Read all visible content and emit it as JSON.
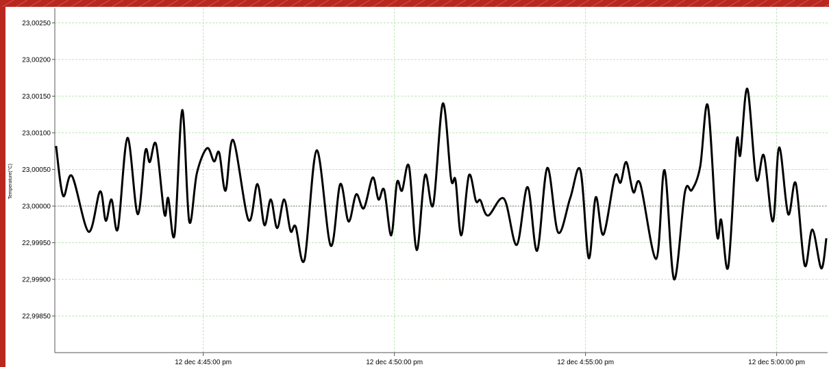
{
  "chart_data": {
    "type": "line",
    "y_label": "Temperature(°C)",
    "x": [
      "16:41:09",
      "16:41:20",
      "16:41:34",
      "16:42:00",
      "16:42:18",
      "16:42:27",
      "16:42:36",
      "16:42:46",
      "16:43:01",
      "16:43:17",
      "16:43:29",
      "16:43:36",
      "16:43:46",
      "16:43:59",
      "16:44:05",
      "16:44:15",
      "16:44:27",
      "16:44:38",
      "16:44:50",
      "16:45:06",
      "16:45:17",
      "16:45:25",
      "16:45:35",
      "16:45:47",
      "16:46:11",
      "16:46:25",
      "16:46:36",
      "16:46:46",
      "16:46:56",
      "16:47:07",
      "16:47:17",
      "16:47:25",
      "16:47:39",
      "16:47:58",
      "16:48:20",
      "16:48:35",
      "16:48:48",
      "16:49:00",
      "16:49:12",
      "16:49:26",
      "16:49:35",
      "16:49:44",
      "16:49:55",
      "16:50:04",
      "16:50:12",
      "16:50:23",
      "16:50:35",
      "16:50:48",
      "16:51:01",
      "16:51:16",
      "16:51:29",
      "16:51:36",
      "16:51:45",
      "16:51:57",
      "16:52:08",
      "16:52:15",
      "16:52:27",
      "16:52:52",
      "16:53:12",
      "16:53:29",
      "16:53:44",
      "16:54:00",
      "16:54:17",
      "16:54:36",
      "16:54:52",
      "16:55:05",
      "16:55:16",
      "16:55:28",
      "16:55:46",
      "16:55:55",
      "16:56:04",
      "16:56:15",
      "16:56:26",
      "16:56:51",
      "16:57:04",
      "16:57:19",
      "16:57:36",
      "16:57:47",
      "16:58:00",
      "16:58:12",
      "16:58:26",
      "16:58:33",
      "16:58:44",
      "16:58:57",
      "16:59:03",
      "16:59:14",
      "16:59:28",
      "16:59:40",
      "16:59:54",
      "17:00:04",
      "17:00:18",
      "17:00:30",
      "17:00:44",
      "17:00:56",
      "17:01:10",
      "17:01:18"
    ],
    "series": [
      {
        "color": "#000000",
        "values": [
          23.00082,
          23.00014,
          23.00041,
          22.99965,
          23.0002,
          22.9998,
          23.00009,
          22.99969,
          23.00093,
          22.99989,
          23.00075,
          23.0006,
          23.00084,
          22.99989,
          23.00011,
          22.99961,
          23.00131,
          22.99979,
          23.00045,
          23.00079,
          23.00061,
          23.00073,
          23.00021,
          23.0009,
          22.99981,
          23.0003,
          22.99974,
          23.00009,
          22.9997,
          23.00009,
          22.99966,
          22.99972,
          22.99927,
          23.00076,
          22.99946,
          23.0003,
          22.99979,
          23.00016,
          22.99997,
          23.00039,
          23.00009,
          23.00022,
          22.9996,
          23.00032,
          23.00021,
          23.00054,
          22.9994,
          23.00042,
          23.00002,
          23.0014,
          23.00037,
          23.00035,
          22.9996,
          23.00042,
          23.00007,
          23.00008,
          22.99987,
          23.0001,
          22.99947,
          23.00026,
          22.99939,
          23.00052,
          22.99964,
          23.00011,
          23.00049,
          22.99929,
          23.00012,
          22.99961,
          23.0004,
          23.00032,
          23.0006,
          23.00019,
          23.0003,
          22.99928,
          23.00049,
          22.999,
          23.00019,
          23.00022,
          23.00054,
          23.00137,
          22.99963,
          22.99981,
          22.99917,
          23.00087,
          23.0007,
          23.0016,
          23.00037,
          23.00069,
          22.99979,
          23.0008,
          22.99989,
          23.00031,
          22.99919,
          22.99968,
          22.99915,
          22.99956
        ]
      }
    ],
    "xlim": [
      "16:41:07",
      "17:01:20"
    ],
    "xticks": [
      {
        "value": "16:45:00",
        "label": "12 dec 4:45:00 pm"
      },
      {
        "value": "16:50:00",
        "label": "12 dec 4:50:00 pm"
      },
      {
        "value": "16:55:00",
        "label": "12 dec 4:55:00 pm"
      },
      {
        "value": "17:00:00",
        "label": "12 dec 5:00:00 pm"
      }
    ],
    "ylim": [
      22.998,
      23.0027
    ],
    "yticks": [
      {
        "value": 22.9985,
        "label": "22,99850"
      },
      {
        "value": 22.999,
        "label": "22,99900"
      },
      {
        "value": 22.9995,
        "label": "22,99950"
      },
      {
        "value": 23,
        "label": "23,00000"
      },
      {
        "value": 23.0005,
        "label": "23,00050"
      },
      {
        "value": 23.001,
        "label": "23,00100"
      },
      {
        "value": 23.0015,
        "label": "23,00150"
      },
      {
        "value": 23.002,
        "label": "23,00200"
      },
      {
        "value": 23.0025,
        "label": "23,00250"
      }
    ],
    "baseline": 23,
    "grid": true
  }
}
